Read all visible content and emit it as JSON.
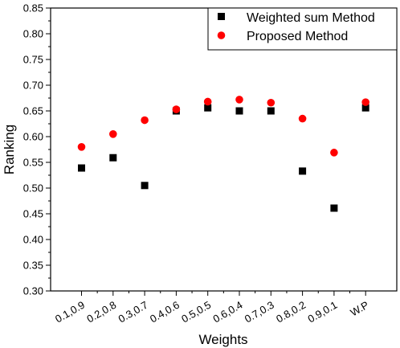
{
  "chart_data": {
    "type": "scatter",
    "title": "",
    "xlabel": "Weights",
    "ylabel": "Ranking",
    "categories": [
      "0.1,0.9",
      "0.2,0.8",
      "0.3,0.7",
      "0.4,0.6",
      "0.5,0.5",
      "0.6,0.4",
      "0.7,0.3",
      "0.8,0.2",
      "0.9,0.1",
      "W.P"
    ],
    "ylim": [
      0.3,
      0.85
    ],
    "yticks": [
      "0.30",
      "0.35",
      "0.40",
      "0.45",
      "0.50",
      "0.55",
      "0.60",
      "0.65",
      "0.70",
      "0.75",
      "0.80",
      "0.85"
    ],
    "grid": false,
    "legend_position": "top-right",
    "series": [
      {
        "name": "Weighted sum Method",
        "marker": "square",
        "color": "#000000",
        "values": [
          0.539,
          0.559,
          0.505,
          0.65,
          0.656,
          0.65,
          0.65,
          0.533,
          0.461,
          0.656
        ]
      },
      {
        "name": "Proposed Method",
        "marker": "circle",
        "color": "#ff0000",
        "values": [
          0.58,
          0.605,
          0.632,
          0.653,
          0.668,
          0.672,
          0.666,
          0.635,
          0.569,
          0.667
        ]
      }
    ]
  }
}
